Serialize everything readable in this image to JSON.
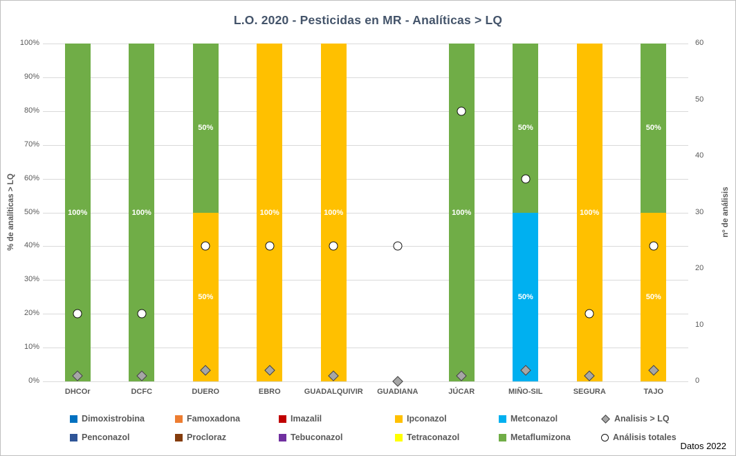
{
  "title": "L.O. 2020 - Pesticidas en MR - Analíticas > LQ",
  "footer_note": "Datos 2022",
  "chart_data": {
    "type": "bar",
    "stacked": true,
    "title": "L.O. 2020 - Pesticidas en MR - Analíticas > LQ",
    "categories": [
      "DHCOr",
      "DCFC",
      "DUERO",
      "EBRO",
      "GUADALQUIVIR",
      "GUADIANA",
      "JÚCAR",
      "MIÑO-SIL",
      "SEGURA",
      "TAJO"
    ],
    "left_axis": {
      "label": "% de analíticas > LQ",
      "min": 0,
      "max": 100,
      "unit": "%",
      "ticks_top_to_bottom": [
        "100%",
        "90%",
        "80%",
        "70%",
        "60%",
        "50%",
        "40%",
        "30%",
        "20%",
        "10%",
        "0%"
      ]
    },
    "right_axis": {
      "label": "nº de análisis",
      "min": 0,
      "max": 60,
      "ticks_top_to_bottom": [
        "60",
        "50",
        "40",
        "30",
        "20",
        "10",
        "0"
      ]
    },
    "grid": "horizontal",
    "series": [
      {
        "name": "Ipconazol",
        "color": "#FFC000",
        "values": [
          0,
          0,
          50,
          100,
          100,
          0,
          0,
          0,
          100,
          50
        ]
      },
      {
        "name": "Metconazol",
        "color": "#00B0F0",
        "values": [
          0,
          0,
          0,
          0,
          0,
          0,
          0,
          50,
          0,
          0
        ]
      },
      {
        "name": "Metaflumizona",
        "color": "#70AD47",
        "values": [
          100,
          100,
          50,
          0,
          0,
          0,
          100,
          50,
          0,
          50
        ]
      }
    ],
    "markers": [
      {
        "name": "Analisis > LQ",
        "shape": "diamond",
        "axis": "right",
        "values": [
          1,
          1,
          2,
          2,
          1,
          0,
          1,
          2,
          1,
          2
        ]
      },
      {
        "name": "Análisis totales",
        "shape": "circle",
        "axis": "right",
        "values": [
          12,
          12,
          24,
          24,
          24,
          24,
          48,
          36,
          12,
          24
        ]
      }
    ],
    "legend_rows": [
      [
        {
          "label": "Dimoxistrobina",
          "swatch": "square",
          "color": "#0070C0"
        },
        {
          "label": "Famoxadona",
          "swatch": "square",
          "color": "#ED7D31"
        },
        {
          "label": "Imazalil",
          "swatch": "square",
          "color": "#C00000"
        },
        {
          "label": "Ipconazol",
          "swatch": "square",
          "color": "#FFC000"
        },
        {
          "label": "Metconazol",
          "swatch": "square",
          "color": "#00B0F0"
        },
        {
          "label": "Analisis > LQ",
          "swatch": "diamond",
          "color": "#A6A6A6"
        }
      ],
      [
        {
          "label": "Penconazol",
          "swatch": "square",
          "color": "#2F5597"
        },
        {
          "label": "Procloraz",
          "swatch": "square",
          "color": "#843C0C"
        },
        {
          "label": "Tebuconazol",
          "swatch": "square",
          "color": "#7030A0"
        },
        {
          "label": "Tetraconazol",
          "swatch": "square",
          "color": "#FFFF00"
        },
        {
          "label": "Metaflumizona",
          "swatch": "square",
          "color": "#70AD47"
        },
        {
          "label": "Análisis totales",
          "swatch": "circle",
          "color": "#FFFFFF"
        }
      ]
    ]
  }
}
